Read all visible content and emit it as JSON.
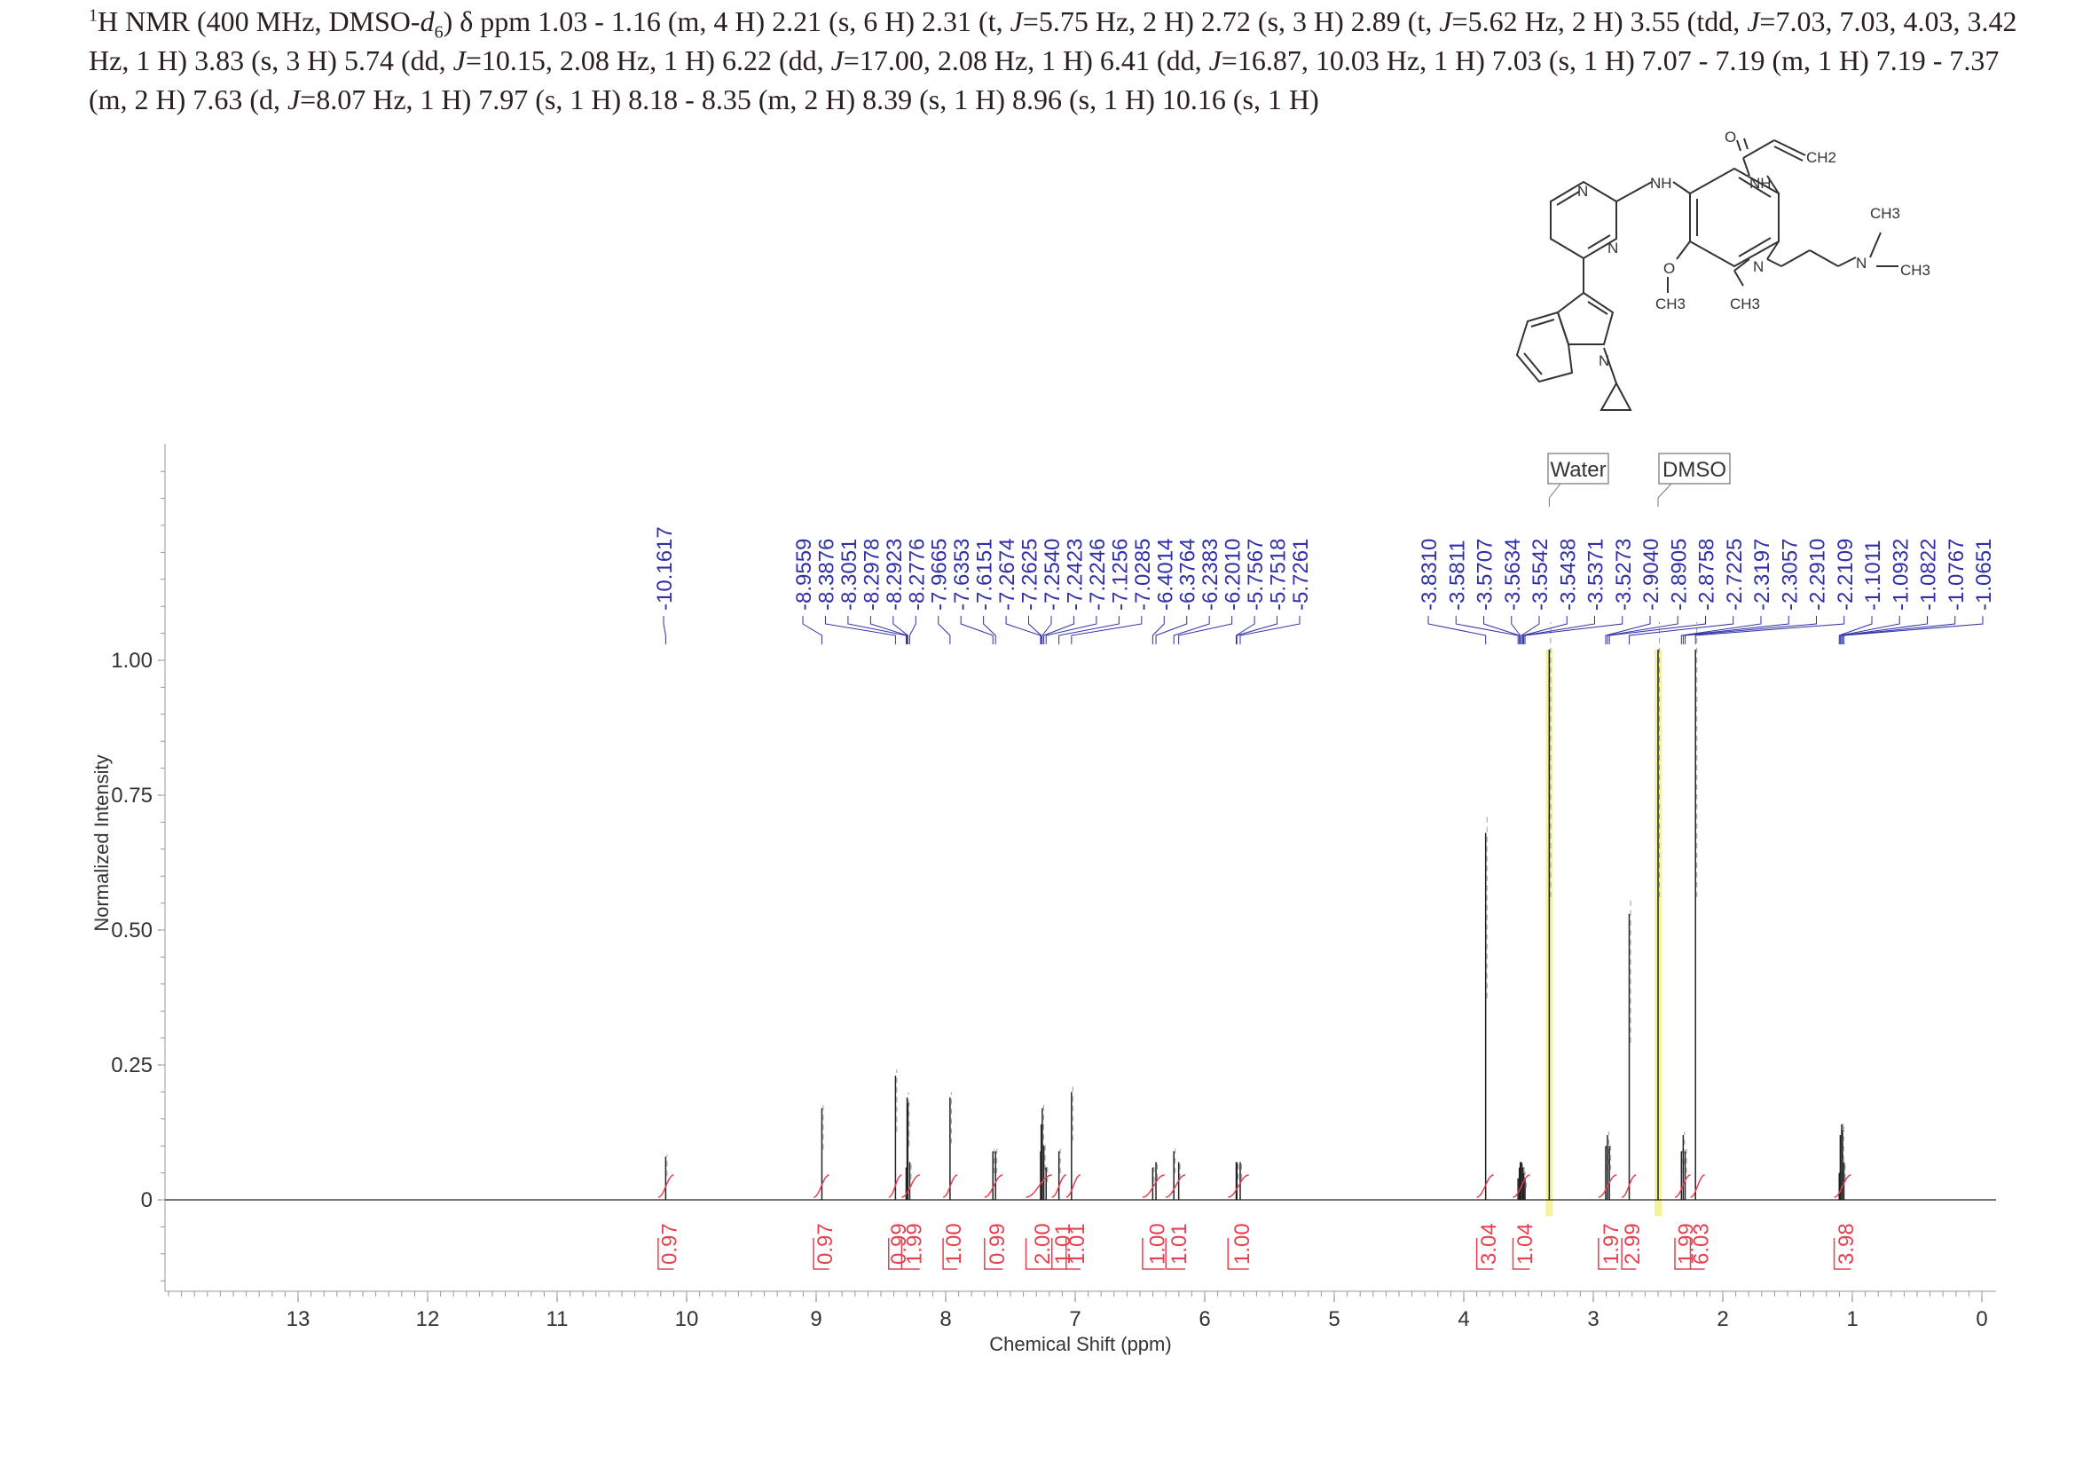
{
  "header": {
    "h1": "1",
    "nmr": "H NMR (400 MHz, DMSO-",
    "d": "d",
    "six": "6",
    "rest1": ") δ ppm 1.03 - 1.16 (m, 4 H) 2.21 (s, 6 H) 2.31 (t, ",
    "J1": "J",
    "rest2": "=5.75 Hz, 2 H) 2.72 (s, 3 H) 2.89 (t, ",
    "J2": "J",
    "rest3": "=5.62 Hz, 2 H) 3.55 (tdd, ",
    "J3": "J",
    "rest4": "=7.03, 7.03, 4.03, 3.42 Hz, 1 H) 3.83 (s, 3 H) 5.74 (dd, ",
    "J4": "J",
    "rest5": "=10.15, 2.08 Hz, 1 H) 6.22 (dd, ",
    "J5": "J",
    "rest6": "=17.00, 2.08 Hz, 1 H) 6.41 (dd, ",
    "J6": "J",
    "rest7": "=16.87, 10.03 Hz, 1 H) 7.03 (s, 1 H) 7.07 - 7.19 (m, 1 H) 7.19 - 7.37 (m, 2 H) 7.63 (d, ",
    "J7": "J",
    "rest8": "=8.07 Hz, 1 H) 7.97 (s, 1 H) 8.18 - 8.35 (m, 2 H) 8.39 (s, 1 H) 8.96 (s, 1 H) 10.16 (s, 1 H)"
  },
  "molecule": {
    "labels": [
      "N",
      "N",
      "NH",
      "NH",
      "O",
      "CH2",
      "O",
      "CH3",
      "N",
      "CH3",
      "N",
      "CH3",
      "N",
      "CH3"
    ]
  },
  "colors": {
    "peak_label": "#2f2fa8",
    "integral": "#e6404f",
    "spectrum": "#222222",
    "solvent_highlight": "#f4f08a"
  },
  "chart_data": {
    "type": "line",
    "xlabel": "Chemical Shift (ppm)",
    "ylabel": "Normalized Intensity",
    "xlim": [
      14,
      0
    ],
    "ylim": [
      -0.17,
      1.4
    ],
    "x_ticks": [
      "13",
      "12",
      "11",
      "10",
      "9",
      "8",
      "7",
      "6",
      "5",
      "4",
      "3",
      "2",
      "1",
      "0"
    ],
    "y_ticks": [
      "1.00",
      "0.75",
      "0.50",
      "0.25",
      "0"
    ],
    "y_tick_values": [
      1.0,
      0.75,
      0.5,
      0.25,
      0
    ],
    "solvent_labels": [
      {
        "label": "Water",
        "ppm": 3.34
      },
      {
        "label": "DMSO",
        "ppm": 2.5
      }
    ],
    "peaks": [
      {
        "ppm": 10.1617,
        "h": 0.08
      },
      {
        "ppm": 8.9559,
        "h": 0.17
      },
      {
        "ppm": 8.3876,
        "h": 0.23
      },
      {
        "ppm": 8.3051,
        "h": 0.06
      },
      {
        "ppm": 8.2978,
        "h": 0.19
      },
      {
        "ppm": 8.2923,
        "h": 0.18
      },
      {
        "ppm": 8.2776,
        "h": 0.07
      },
      {
        "ppm": 7.9665,
        "h": 0.19
      },
      {
        "ppm": 7.6353,
        "h": 0.09
      },
      {
        "ppm": 7.6151,
        "h": 0.09
      },
      {
        "ppm": 7.2674,
        "h": 0.09
      },
      {
        "ppm": 7.2625,
        "h": 0.14
      },
      {
        "ppm": 7.254,
        "h": 0.17
      },
      {
        "ppm": 7.2423,
        "h": 0.1
      },
      {
        "ppm": 7.2246,
        "h": 0.06
      },
      {
        "ppm": 7.1256,
        "h": 0.09
      },
      {
        "ppm": 7.0285,
        "h": 0.2
      },
      {
        "ppm": 6.4014,
        "h": 0.06
      },
      {
        "ppm": 6.3764,
        "h": 0.07
      },
      {
        "ppm": 6.2383,
        "h": 0.09
      },
      {
        "ppm": 6.201,
        "h": 0.07
      },
      {
        "ppm": 5.7567,
        "h": 0.07
      },
      {
        "ppm": 5.7518,
        "h": 0.07
      },
      {
        "ppm": 5.7261,
        "h": 0.07
      },
      {
        "ppm": 3.831,
        "h": 0.68
      },
      {
        "ppm": 3.5811,
        "h": 0.04
      },
      {
        "ppm": 3.5707,
        "h": 0.06
      },
      {
        "ppm": 3.5634,
        "h": 0.07
      },
      {
        "ppm": 3.5542,
        "h": 0.07
      },
      {
        "ppm": 3.5438,
        "h": 0.06
      },
      {
        "ppm": 3.5371,
        "h": 0.05
      },
      {
        "ppm": 3.5273,
        "h": 0.04
      },
      {
        "ppm": 3.34,
        "h": 1.02
      },
      {
        "ppm": 2.904,
        "h": 0.1
      },
      {
        "ppm": 2.8905,
        "h": 0.12
      },
      {
        "ppm": 2.8758,
        "h": 0.1
      },
      {
        "ppm": 2.7225,
        "h": 0.53
      },
      {
        "ppm": 2.5,
        "h": 1.02
      },
      {
        "ppm": 2.3197,
        "h": 0.09
      },
      {
        "ppm": 2.3057,
        "h": 0.12
      },
      {
        "ppm": 2.291,
        "h": 0.09
      },
      {
        "ppm": 2.2109,
        "h": 1.02
      },
      {
        "ppm": 1.1011,
        "h": 0.05
      },
      {
        "ppm": 1.0932,
        "h": 0.12
      },
      {
        "ppm": 1.0822,
        "h": 0.14
      },
      {
        "ppm": 1.0767,
        "h": 0.13
      },
      {
        "ppm": 1.0651,
        "h": 0.07
      }
    ],
    "peak_labels": [
      {
        "group": 1,
        "labels": [
          "10.1617"
        ]
      },
      {
        "group": 2,
        "labels": [
          "8.9559",
          "8.3876",
          "8.3051",
          "8.2978",
          "8.2923",
          "8.2776",
          "7.9665",
          "7.6353",
          "7.6151",
          "7.2674",
          "7.2625",
          "7.2540",
          "7.2423",
          "7.2246",
          "7.1256",
          "7.0285",
          "6.4014",
          "6.3764",
          "6.2383",
          "6.2010",
          "5.7567",
          "5.7518",
          "5.7261"
        ]
      },
      {
        "group": 3,
        "labels": [
          "3.8310",
          "3.5811",
          "3.5707",
          "3.5634",
          "3.5542",
          "3.5438",
          "3.5371",
          "3.5273",
          "2.9040",
          "2.8905",
          "2.8758",
          "2.7225",
          "2.3197",
          "2.3057",
          "2.2910",
          "2.2109",
          "1.1011",
          "1.0932",
          "1.0822",
          "1.0767",
          "1.0651"
        ]
      }
    ],
    "integrals": [
      {
        "from": 10.22,
        "to": 10.1,
        "value": "0.97"
      },
      {
        "from": 9.02,
        "to": 8.9,
        "value": "0.97"
      },
      {
        "from": 8.44,
        "to": 8.34,
        "value": "0.99"
      },
      {
        "from": 8.34,
        "to": 8.2,
        "value": "1.99"
      },
      {
        "from": 8.02,
        "to": 7.91,
        "value": "1.00"
      },
      {
        "from": 7.7,
        "to": 7.56,
        "value": "0.99"
      },
      {
        "from": 7.38,
        "to": 7.18,
        "value": "2.00"
      },
      {
        "from": 7.18,
        "to": 7.07,
        "value": "1.01"
      },
      {
        "from": 7.07,
        "to": 6.96,
        "value": "1.01"
      },
      {
        "from": 6.48,
        "to": 6.31,
        "value": "1.00"
      },
      {
        "from": 6.3,
        "to": 6.15,
        "value": "1.01"
      },
      {
        "from": 5.82,
        "to": 5.66,
        "value": "1.00"
      },
      {
        "from": 3.9,
        "to": 3.77,
        "value": "3.04"
      },
      {
        "from": 3.62,
        "to": 3.49,
        "value": "1.04"
      },
      {
        "from": 2.96,
        "to": 2.82,
        "value": "1.97"
      },
      {
        "from": 2.78,
        "to": 2.67,
        "value": "2.99"
      },
      {
        "from": 2.37,
        "to": 2.25,
        "value": "1.99"
      },
      {
        "from": 2.25,
        "to": 2.14,
        "value": "6.03"
      },
      {
        "from": 1.14,
        "to": 1.01,
        "value": "3.98"
      }
    ]
  }
}
